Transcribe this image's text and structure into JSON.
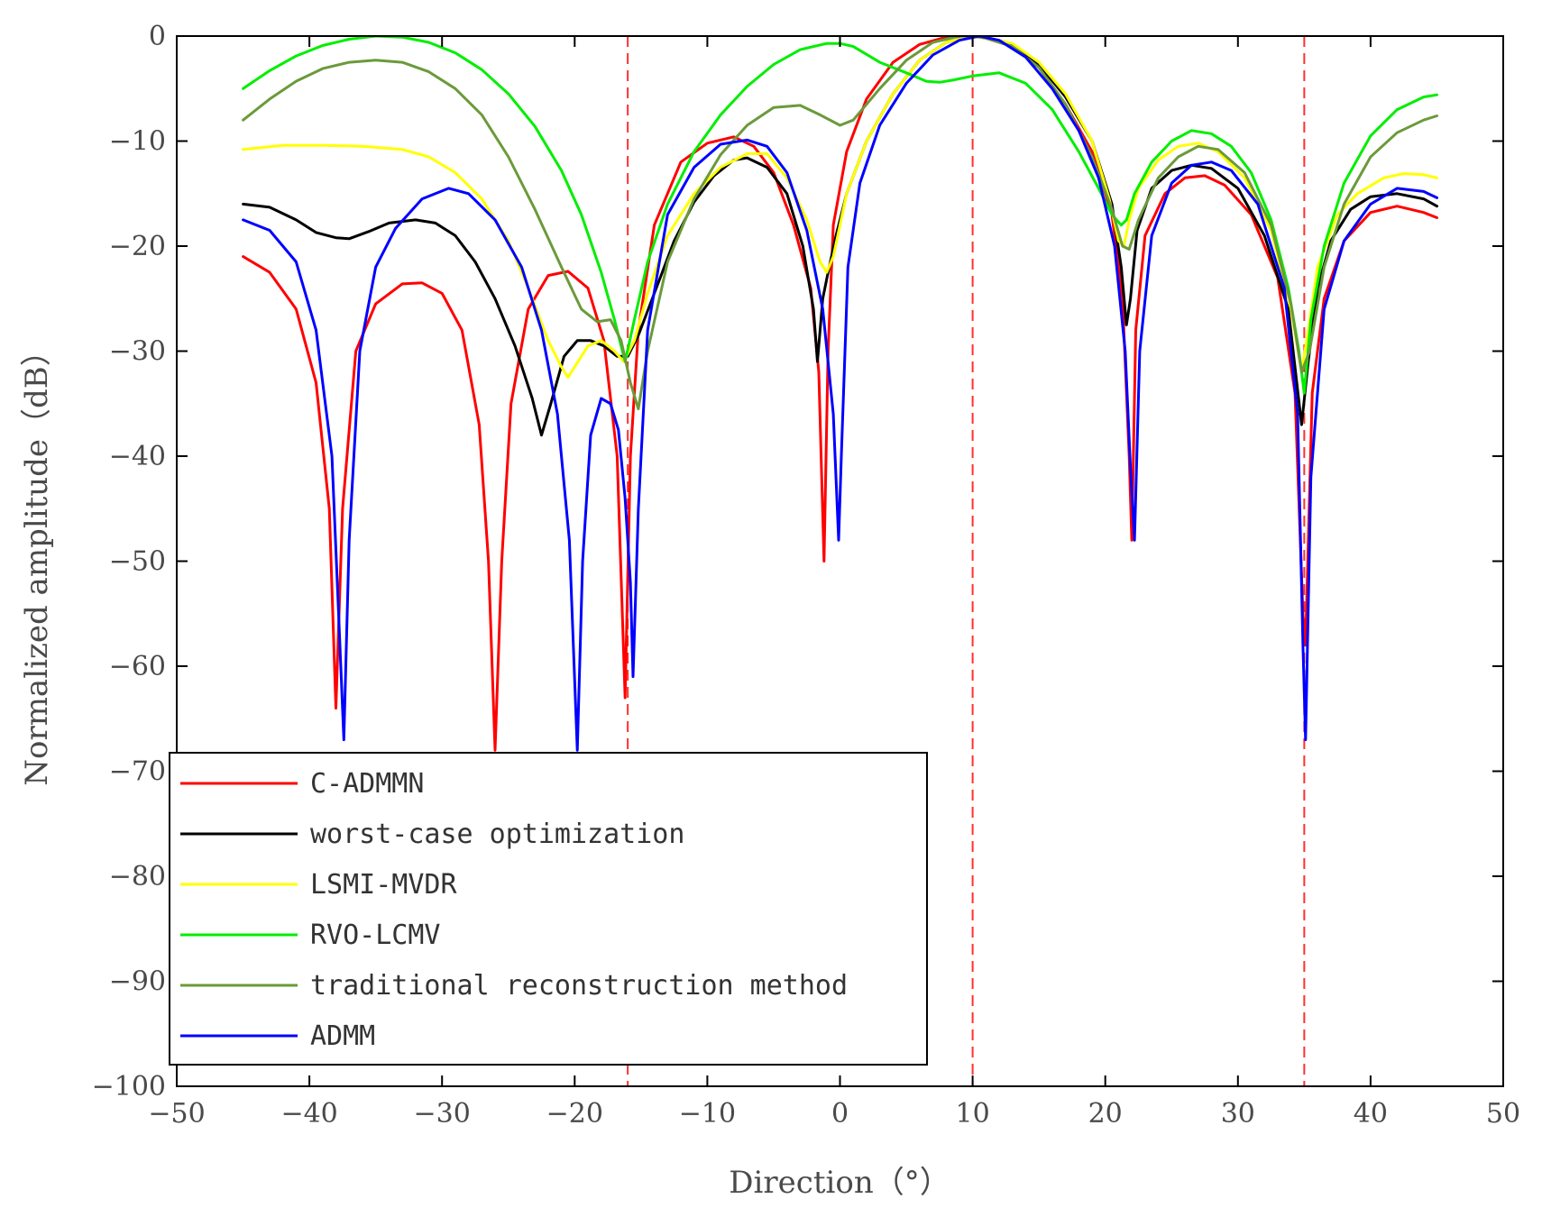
{
  "chart_data": {
    "type": "line",
    "title": "",
    "xlabel": "Direction（°）",
    "ylabel": "Normalized amplitude（dB）",
    "xlim": [
      -50,
      50
    ],
    "ylim": [
      -100,
      0
    ],
    "xticks": [
      -50,
      -40,
      -30,
      -20,
      -10,
      0,
      10,
      20,
      30,
      40,
      50
    ],
    "yticks": [
      0,
      -10,
      -20,
      -30,
      -40,
      -50,
      -60,
      -70,
      -80,
      -90,
      -100
    ],
    "xtick_labels": [
      "−50",
      "−40",
      "−30",
      "−20",
      "−10",
      "0",
      "10",
      "20",
      "30",
      "40",
      "50"
    ],
    "ytick_labels": [
      "0",
      "−10",
      "−20",
      "−30",
      "−40",
      "−50",
      "−60",
      "−70",
      "−80",
      "−90",
      "−100"
    ],
    "grid": false,
    "legend_position": "bottom-left",
    "reference_lines": [
      -16,
      10,
      35
    ],
    "reference_line_color": "#ff3030",
    "series": [
      {
        "name": "C-ADMMN",
        "color": "#ff0000",
        "x": [
          -45,
          -43,
          -41,
          -39.5,
          -38.5,
          -38,
          -37.5,
          -36.5,
          -35,
          -33,
          -31.5,
          -30,
          -28.5,
          -27.2,
          -26.5,
          -26,
          -25.5,
          -24.8,
          -23.5,
          -22,
          -20.5,
          -19,
          -17.8,
          -16.8,
          -16.2,
          -15.8,
          -15.2,
          -14,
          -12,
          -10,
          -8,
          -6.5,
          -5,
          -3.5,
          -2.2,
          -1.6,
          -1.2,
          -0.9,
          -0.5,
          0.5,
          2,
          4,
          6,
          8,
          10,
          11,
          13,
          15,
          17,
          19,
          20.5,
          21.3,
          21.8,
          22,
          22.3,
          23,
          24.5,
          26,
          27.5,
          29,
          31,
          33,
          34.3,
          34.9,
          35.1,
          35.6,
          36.5,
          38,
          40,
          42,
          44,
          45
        ],
        "y": [
          -21,
          -22.5,
          -26,
          -33,
          -45,
          -64,
          -45,
          -30,
          -25.5,
          -23.6,
          -23.5,
          -24.5,
          -28,
          -37,
          -50,
          -68,
          -50,
          -35,
          -26,
          -22.8,
          -22.4,
          -24,
          -29,
          -40,
          -63,
          -40,
          -28,
          -18,
          -12,
          -10.2,
          -9.6,
          -10.5,
          -13,
          -18,
          -24,
          -32,
          -50,
          -30,
          -18,
          -11,
          -6,
          -2.5,
          -0.8,
          -0.1,
          0,
          -0.2,
          -1,
          -3,
          -6.5,
          -11,
          -17,
          -25,
          -40,
          -48,
          -28,
          -19,
          -15,
          -13.5,
          -13.3,
          -14.2,
          -17,
          -23,
          -34,
          -55,
          -58,
          -34,
          -25,
          -19.5,
          -16.8,
          -16.2,
          -16.8,
          -17.3
        ]
      },
      {
        "name": "worst-case optimization",
        "color": "#000000",
        "x": [
          -45,
          -43,
          -41,
          -39.5,
          -38,
          -37,
          -35.5,
          -34,
          -32,
          -30.5,
          -29,
          -27.5,
          -26,
          -24.5,
          -23.2,
          -22.5,
          -21.8,
          -20.8,
          -19.8,
          -18.8,
          -17.8,
          -16.8,
          -16,
          -15.2,
          -14,
          -12.5,
          -11,
          -9.5,
          -8,
          -7,
          -5.5,
          -4,
          -2.8,
          -2,
          -1.7,
          -1.3,
          -0.9,
          -0.3,
          0.5,
          2,
          4,
          6,
          8,
          10,
          11,
          13,
          15,
          17,
          19,
          20.5,
          21.2,
          21.6,
          21.9,
          22.4,
          23.5,
          25,
          26.5,
          28,
          30,
          32,
          33.8,
          34.8,
          35.3,
          36,
          37,
          38.5,
          40,
          42,
          44,
          45
        ],
        "y": [
          -16,
          -16.3,
          -17.5,
          -18.7,
          -19.2,
          -19.3,
          -18.6,
          -17.8,
          -17.5,
          -17.8,
          -19,
          -21.5,
          -25,
          -29.5,
          -34.5,
          -38,
          -35,
          -30.5,
          -29,
          -29,
          -29.5,
          -30.5,
          -30.5,
          -28.5,
          -24.5,
          -19.5,
          -15.8,
          -13.3,
          -11.8,
          -11.6,
          -12.5,
          -15,
          -20,
          -26,
          -31,
          -25,
          -22.5,
          -19,
          -15,
          -10,
          -5.5,
          -2.3,
          -0.6,
          0,
          -0.1,
          -0.8,
          -2.7,
          -5.8,
          -10,
          -16,
          -22,
          -27.5,
          -25,
          -18.5,
          -14.5,
          -12.8,
          -12.3,
          -12.6,
          -14.5,
          -19,
          -26,
          -37,
          -31,
          -24,
          -19.5,
          -16.5,
          -15.3,
          -15,
          -15.5,
          -16.2
        ]
      },
      {
        "name": "LSMI-MVDR",
        "color": "#ffff00",
        "x": [
          -45,
          -42,
          -39,
          -36,
          -33,
          -31,
          -29,
          -27,
          -25,
          -23.5,
          -22,
          -21,
          -20.5,
          -20,
          -19,
          -18,
          -17,
          -16.3,
          -15.5,
          -14.5,
          -13,
          -11,
          -9,
          -7,
          -5.5,
          -4,
          -2.5,
          -1.5,
          -1,
          -0.5,
          0.5,
          2,
          4,
          6,
          8,
          10,
          11,
          13,
          15,
          17,
          19,
          20.3,
          21,
          21.4,
          21.8,
          22.5,
          24,
          25.5,
          27,
          28.5,
          30.5,
          32.5,
          34,
          34.8,
          35.3,
          36,
          37.5,
          39,
          41,
          42.5,
          44,
          45
        ],
        "y": [
          -10.8,
          -10.4,
          -10.4,
          -10.5,
          -10.8,
          -11.5,
          -13,
          -15.5,
          -19.5,
          -24,
          -29,
          -31.5,
          -32.5,
          -31.5,
          -29.5,
          -29,
          -30,
          -31,
          -29,
          -24.5,
          -19,
          -15,
          -12.5,
          -11.2,
          -11.2,
          -13.5,
          -17.5,
          -21.5,
          -22.5,
          -21,
          -15,
          -10,
          -5.5,
          -2.3,
          -0.6,
          0,
          -0.1,
          -0.7,
          -2.5,
          -5.5,
          -10,
          -15.5,
          -19.5,
          -20,
          -17.5,
          -14.5,
          -11.8,
          -10.5,
          -10.2,
          -11,
          -13.5,
          -18.5,
          -26,
          -32,
          -28,
          -22,
          -17,
          -15,
          -13.5,
          -13.1,
          -13.2,
          -13.5
        ]
      },
      {
        "name": "RVO-LCMV",
        "color": "#00ee00",
        "x": [
          -45,
          -43,
          -41,
          -39,
          -37,
          -35,
          -33,
          -31,
          -29,
          -27,
          -25,
          -23,
          -21,
          -19.5,
          -18,
          -17,
          -16.2,
          -15.5,
          -14.5,
          -13,
          -11,
          -9,
          -7,
          -5,
          -3,
          -1,
          0,
          1,
          3,
          5,
          6.5,
          7.5,
          8.5,
          10,
          12,
          14,
          16,
          18,
          19.5,
          20.5,
          21.2,
          21.6,
          22.2,
          23.5,
          25,
          26.5,
          28,
          29.5,
          31,
          32.5,
          33.8,
          34.6,
          35,
          35.5,
          36.5,
          38,
          40,
          42,
          44,
          45
        ],
        "y": [
          -5,
          -3.3,
          -1.9,
          -0.9,
          -0.3,
          0,
          -0.1,
          -0.6,
          -1.6,
          -3.2,
          -5.5,
          -8.6,
          -12.8,
          -17,
          -22.5,
          -27,
          -31,
          -27,
          -21.5,
          -16,
          -11,
          -7.5,
          -4.8,
          -2.7,
          -1.3,
          -0.7,
          -0.7,
          -1,
          -2.5,
          -3.5,
          -4.3,
          -4.4,
          -4.2,
          -3.8,
          -3.5,
          -4.5,
          -7,
          -11,
          -14.5,
          -17,
          -18,
          -17.5,
          -15,
          -12,
          -10,
          -9,
          -9.3,
          -10.5,
          -13,
          -17.5,
          -24,
          -30,
          -34,
          -27,
          -20,
          -14,
          -9.5,
          -7,
          -5.8,
          -5.6
        ]
      },
      {
        "name": "traditional reconstruction method",
        "color": "#6b9a3a",
        "x": [
          -45,
          -43,
          -41,
          -39,
          -37,
          -35,
          -33,
          -31,
          -29,
          -27,
          -25,
          -23,
          -21,
          -19.5,
          -18.3,
          -17.3,
          -16.5,
          -15.8,
          -15.2,
          -14.5,
          -13,
          -11,
          -9,
          -7,
          -5,
          -3,
          -1.5,
          0,
          1,
          3,
          5,
          7,
          9,
          10,
          11,
          13,
          15,
          17,
          19,
          20.5,
          21.3,
          21.8,
          22.5,
          24,
          25.5,
          27,
          28.5,
          30.5,
          32.5,
          34,
          34.8,
          35.4,
          36.5,
          38,
          40,
          42,
          44,
          45
        ],
        "y": [
          -8,
          -6,
          -4.3,
          -3.1,
          -2.5,
          -2.3,
          -2.5,
          -3.4,
          -5,
          -7.5,
          -11.5,
          -16.5,
          -22,
          -26,
          -27.2,
          -27,
          -29,
          -33,
          -35.5,
          -30,
          -21.5,
          -15.5,
          -11.3,
          -8.5,
          -6.8,
          -6.6,
          -7.5,
          -8.5,
          -8,
          -5,
          -2.3,
          -0.6,
          0,
          0,
          -0.2,
          -1,
          -3,
          -6.5,
          -11.5,
          -16.5,
          -20,
          -20.3,
          -17.5,
          -13.5,
          -11.5,
          -10.5,
          -10.8,
          -13,
          -18,
          -25.5,
          -32,
          -30,
          -22,
          -16,
          -11.5,
          -9.2,
          -8,
          -7.6
        ]
      },
      {
        "name": "ADMM",
        "color": "#0000ff",
        "x": [
          -45,
          -43,
          -41,
          -39.5,
          -38.3,
          -37.8,
          -37.4,
          -37,
          -36.2,
          -35,
          -33.5,
          -31.5,
          -29.5,
          -28,
          -26,
          -24,
          -22.5,
          -21.3,
          -20.4,
          -19.8,
          -19.4,
          -18.8,
          -18,
          -17.3,
          -16.7,
          -16.2,
          -15.8,
          -15.6,
          -15.2,
          -14.5,
          -13,
          -11,
          -9,
          -7,
          -5.5,
          -4,
          -2.5,
          -1.3,
          -0.5,
          -0.1,
          0.1,
          0.6,
          1.5,
          3,
          5,
          7,
          9,
          10.5,
          12,
          14,
          16,
          18,
          19.5,
          20.7,
          21.5,
          21.9,
          22.2,
          22.6,
          23.5,
          25,
          26.5,
          28,
          29.5,
          31.5,
          33.5,
          34.5,
          34.9,
          35.1,
          35.5,
          36.5,
          38,
          40,
          42,
          44,
          45
        ],
        "y": [
          -17.5,
          -18.5,
          -21.5,
          -28,
          -40,
          -55,
          -67,
          -48,
          -30,
          -22,
          -18.3,
          -15.5,
          -14.5,
          -15,
          -17.5,
          -22,
          -28,
          -36,
          -48,
          -68,
          -50,
          -38,
          -34.5,
          -35,
          -37.5,
          -44,
          -52,
          -61,
          -45,
          -28,
          -17,
          -12.5,
          -10.3,
          -9.9,
          -10.5,
          -13,
          -18.5,
          -26,
          -36,
          -48,
          -40,
          -22,
          -14,
          -8.5,
          -4.5,
          -1.8,
          -0.4,
          0,
          -0.4,
          -2,
          -5,
          -9,
          -13.5,
          -20,
          -30,
          -41,
          -48,
          -30,
          -19,
          -14,
          -12.3,
          -12,
          -12.8,
          -16,
          -24,
          -36,
          -58,
          -67,
          -42,
          -26,
          -19.5,
          -16,
          -14.5,
          -14.8,
          -15.4
        ]
      }
    ]
  }
}
